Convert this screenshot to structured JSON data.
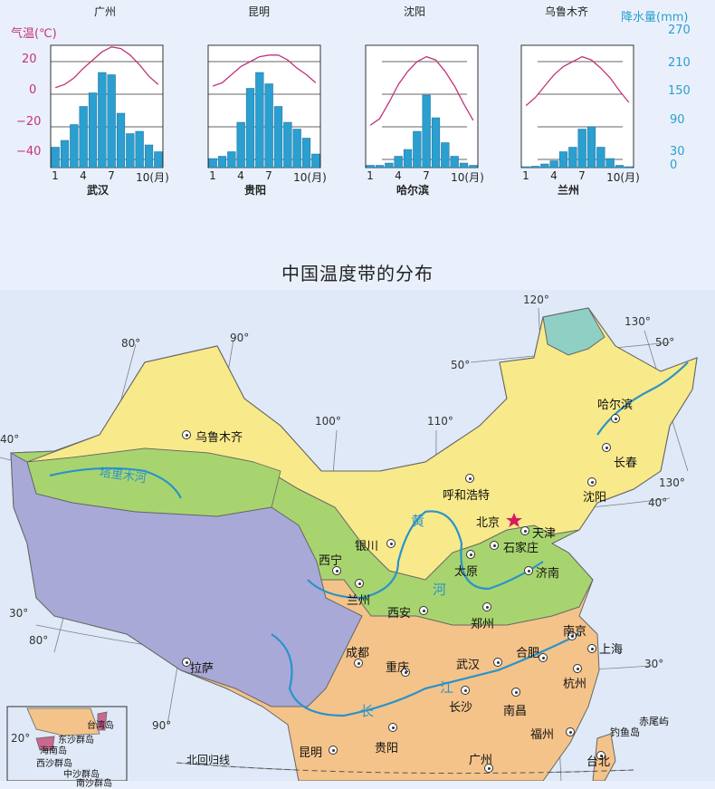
{
  "colors": {
    "bar": "#2a9fd0",
    "temp_line": "#c2337b",
    "grid": "#333333",
    "zone_north": "#f8e98a",
    "zone_middle": "#a8d46f",
    "zone_south": "#f4c38a",
    "zone_plateau": "#a9a9d8",
    "zone_cold": "#8fcfc4",
    "river": "#2a93c9"
  },
  "top_cities": [
    "广州",
    "昆明",
    "沈阳",
    "乌鲁木齐"
  ],
  "chart_labels": {
    "left_unit": "气温(℃)",
    "right_unit": "降水量(mm)",
    "left_ticks": [
      "20",
      "0",
      "−20",
      "−40"
    ],
    "right_ticks": [
      "270",
      "210",
      "150",
      "90",
      "30",
      "0"
    ],
    "month_ticks": [
      "1",
      "4",
      "7",
      "10(月)"
    ]
  },
  "chart_data": [
    {
      "type": "bar+line",
      "title": "武汉",
      "x": [
        1,
        2,
        3,
        4,
        5,
        6,
        7,
        8,
        9,
        10,
        11,
        12
      ],
      "precip_mm": [
        45,
        60,
        95,
        135,
        165,
        210,
        205,
        120,
        75,
        80,
        50,
        35
      ],
      "temp_c": [
        4,
        6,
        10,
        16,
        21,
        26,
        29,
        28,
        24,
        18,
        11,
        6
      ]
    },
    {
      "type": "bar+line",
      "title": "贵阳",
      "x": [
        1,
        2,
        3,
        4,
        5,
        6,
        7,
        8,
        9,
        10,
        11,
        12
      ],
      "precip_mm": [
        20,
        25,
        35,
        100,
        175,
        210,
        185,
        135,
        100,
        85,
        65,
        30
      ],
      "temp_c": [
        5,
        7,
        12,
        17,
        20,
        23,
        24,
        24,
        21,
        16,
        12,
        7
      ]
    },
    {
      "type": "bar+line",
      "title": "哈尔滨",
      "x": [
        1,
        2,
        3,
        4,
        5,
        6,
        7,
        8,
        9,
        10,
        11,
        12
      ],
      "precip_mm": [
        5,
        5,
        10,
        25,
        40,
        80,
        160,
        110,
        55,
        25,
        10,
        5
      ],
      "temp_c": [
        -19,
        -15,
        -5,
        6,
        14,
        20,
        23,
        21,
        14,
        5,
        -6,
        -16
      ]
    },
    {
      "type": "bar+line",
      "title": "兰州",
      "x": [
        1,
        2,
        3,
        4,
        5,
        6,
        7,
        8,
        9,
        10,
        11,
        12
      ],
      "precip_mm": [
        2,
        3,
        8,
        15,
        35,
        45,
        85,
        90,
        45,
        20,
        5,
        2
      ],
      "temp_c": [
        -7,
        -2,
        5,
        12,
        17,
        20,
        23,
        21,
        16,
        10,
        2,
        -5
      ]
    }
  ],
  "map": {
    "title": "中国温度带的分布",
    "cities": [
      {
        "name": "乌鲁木齐"
      },
      {
        "name": "哈尔滨"
      },
      {
        "name": "长春"
      },
      {
        "name": "沈阳"
      },
      {
        "name": "呼和浩特"
      },
      {
        "name": "北京"
      },
      {
        "name": "天津"
      },
      {
        "name": "石家庄"
      },
      {
        "name": "银川"
      },
      {
        "name": "太原"
      },
      {
        "name": "济南"
      },
      {
        "name": "西宁"
      },
      {
        "name": "兰州"
      },
      {
        "name": "西安"
      },
      {
        "name": "郑州"
      },
      {
        "name": "南京"
      },
      {
        "name": "合肥"
      },
      {
        "name": "上海"
      },
      {
        "name": "拉萨"
      },
      {
        "name": "成都"
      },
      {
        "name": "重庆"
      },
      {
        "name": "武汉"
      },
      {
        "name": "杭州"
      },
      {
        "name": "长沙"
      },
      {
        "name": "南昌"
      },
      {
        "name": "福州"
      },
      {
        "name": "贵阳"
      },
      {
        "name": "昆明"
      },
      {
        "name": "广州"
      },
      {
        "name": "台北"
      }
    ],
    "rivers": {
      "tarim": "塔里木河",
      "huang1": "黄",
      "huang2": "河",
      "jiang1": "江",
      "chang": "长"
    },
    "islands": {
      "diaoyu": "钓鱼岛",
      "chiwei": "赤尾屿"
    },
    "tropic": "北回归线",
    "degrees": [
      "120°",
      "130°",
      "50°",
      "80°",
      "90°",
      "50°",
      "100°",
      "110°",
      "40°",
      "40°",
      "130°",
      "30°",
      "80°",
      "30°",
      "90°",
      "20°"
    ],
    "inset": {
      "taiwan": "台湾岛",
      "dongsha": "东沙群岛",
      "hainan": "海南岛",
      "xisha": "西沙群岛",
      "zhongsha": "中沙群岛",
      "nansha": "南沙群岛"
    }
  }
}
